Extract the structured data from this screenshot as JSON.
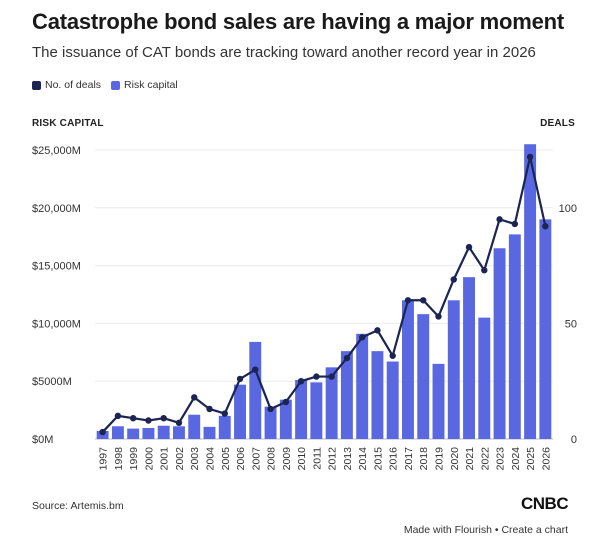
{
  "header": {
    "title": "Catastrophe bond sales are having a major moment",
    "subtitle": "The issuance of CAT bonds are tracking toward another record year in 2026"
  },
  "legend": [
    {
      "label": "No. of deals",
      "color": "#1b2452"
    },
    {
      "label": "Risk capital",
      "color": "#5968e0"
    }
  ],
  "axis_titles": {
    "left": "RISK CAPITAL",
    "right": "DEALS"
  },
  "source": "Source: Artemis.bm",
  "logo": "CNBC",
  "footer": "Made with Flourish • Create a chart",
  "chart_data": {
    "type": "bar",
    "categories": [
      "1997",
      "1998",
      "1999",
      "2000",
      "2001",
      "2002",
      "2003",
      "2004",
      "2005",
      "2006",
      "2007",
      "2008",
      "2009",
      "2010",
      "2011",
      "2012",
      "2013",
      "2014",
      "2015",
      "2016",
      "2017",
      "2018",
      "2019",
      "2020",
      "2021",
      "2022",
      "2023",
      "2024",
      "2025",
      "2026"
    ],
    "series": [
      {
        "name": "Risk capital",
        "type": "bar",
        "axis": "left",
        "color": "#5968e0",
        "values": [
          700,
          1100,
          900,
          950,
          1150,
          1100,
          2100,
          1050,
          2000,
          4700,
          8400,
          2800,
          3400,
          5100,
          4900,
          6200,
          7600,
          9100,
          7600,
          6700,
          12000,
          10800,
          6500,
          12000,
          14000,
          10500,
          16500,
          17700,
          25500,
          19000
        ]
      },
      {
        "name": "No. of deals",
        "type": "line",
        "axis": "right",
        "color": "#1b2452",
        "values": [
          3,
          10,
          9,
          8,
          9,
          7,
          18,
          13,
          11,
          26,
          30,
          13,
          16,
          25,
          27,
          27,
          35,
          44,
          47,
          36,
          60,
          60,
          53,
          69,
          83,
          73,
          95,
          93,
          122,
          92
        ]
      }
    ],
    "y_left": {
      "min": 0,
      "max": 25000,
      "ticks": [
        0,
        5000,
        10000,
        15000,
        20000,
        25000
      ],
      "tick_labels": [
        "$0M",
        "$5000M",
        "$10,000M",
        "$15,000M",
        "$20,000M",
        "$25,000M"
      ]
    },
    "y_right": {
      "min": 0,
      "max": 125,
      "ticks": [
        0,
        50,
        100
      ],
      "tick_labels": [
        "0",
        "50",
        "100"
      ]
    },
    "grid": true,
    "legend_position": "top-left"
  }
}
